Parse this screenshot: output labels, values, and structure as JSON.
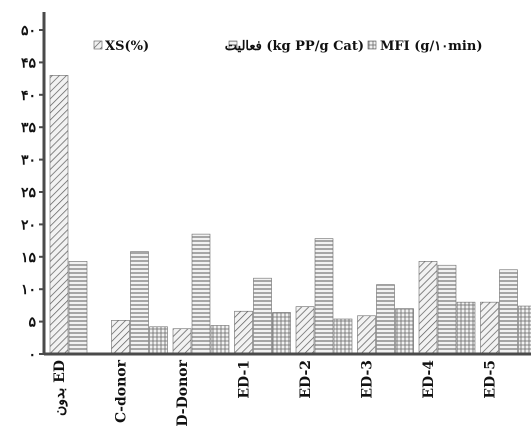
{
  "chart_data": {
    "type": "bar",
    "categories": [
      "بدون ED",
      "C-donor",
      "D-Donor",
      "ED-1",
      "ED-2",
      "ED-3",
      "ED-4",
      "ED-5"
    ],
    "series": [
      {
        "name": "XS(%)",
        "pattern": "diagonal",
        "values": [
          43,
          5.2,
          3.9,
          6.6,
          7.3,
          5.9,
          14.3,
          8.0
        ]
      },
      {
        "name": "فعالیت (kg PP/g Cat)",
        "pattern": "horizontal",
        "values": [
          14.3,
          15.8,
          18.5,
          11.7,
          17.8,
          10.7,
          13.7,
          13.0
        ]
      },
      {
        "name": "MFI (g/۱۰min)",
        "pattern": "grid",
        "values": [
          0,
          4.2,
          4.4,
          6.4,
          5.4,
          7.0,
          8.0,
          7.4
        ]
      }
    ],
    "yticks": [
      "۰",
      "۵",
      "۱۰",
      "۱۵",
      "۲۰",
      "۲۵",
      "۳۰",
      "۳۵",
      "۴۰",
      "۴۵",
      "۵۰"
    ],
    "ylim": [
      0,
      50
    ],
    "grid": false,
    "legend_position": "top",
    "colors": {
      "bar_fill": "#f2f2f2",
      "bar_pattern": "#5a5a5a",
      "axis": "#4a4a4a"
    }
  }
}
